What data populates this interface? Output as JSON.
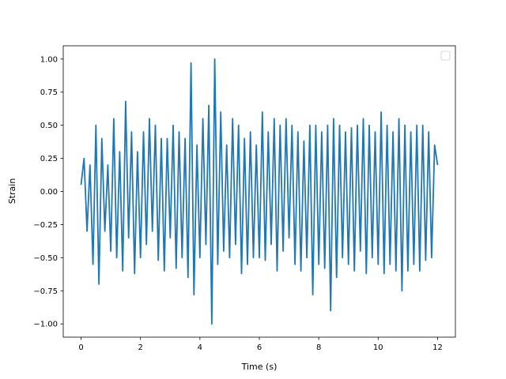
{
  "chart_data": {
    "type": "line",
    "xlabel": "Time (s)",
    "ylabel": "Strain",
    "xlim": [
      -0.6,
      12.6
    ],
    "ylim": [
      -1.1,
      1.1
    ],
    "xticks": [
      0,
      2,
      4,
      6,
      8,
      10,
      12
    ],
    "xtick_labels": [
      "0",
      "2",
      "4",
      "6",
      "8",
      "10",
      "12"
    ],
    "yticks": [
      -1.0,
      -0.75,
      -0.5,
      -0.25,
      0.0,
      0.25,
      0.5,
      0.75,
      1.0
    ],
    "ytick_labels": [
      "−1.00",
      "−0.75",
      "−0.50",
      "−0.25",
      "0.00",
      "0.25",
      "0.50",
      "0.75",
      "1.00"
    ],
    "grid": false,
    "legend": {
      "placement": "upper right",
      "entries": []
    },
    "series": [
      {
        "color": "#1f77b4",
        "x": [
          0.0,
          0.1,
          0.2,
          0.3,
          0.4,
          0.5,
          0.6,
          0.7,
          0.8,
          0.9,
          1.0,
          1.1,
          1.2,
          1.3,
          1.4,
          1.5,
          1.6,
          1.7,
          1.8,
          1.9,
          2.0,
          2.1,
          2.2,
          2.3,
          2.4,
          2.5,
          2.6,
          2.7,
          2.8,
          2.9,
          3.0,
          3.1,
          3.2,
          3.3,
          3.4,
          3.5,
          3.6,
          3.7,
          3.8,
          3.9,
          4.0,
          4.1,
          4.2,
          4.3,
          4.4,
          4.5,
          4.6,
          4.7,
          4.8,
          4.9,
          5.0,
          5.1,
          5.2,
          5.3,
          5.4,
          5.5,
          5.6,
          5.7,
          5.8,
          5.9,
          6.0,
          6.1,
          6.2,
          6.3,
          6.4,
          6.5,
          6.6,
          6.7,
          6.8,
          6.9,
          7.0,
          7.1,
          7.2,
          7.3,
          7.4,
          7.5,
          7.6,
          7.7,
          7.8,
          7.9,
          8.0,
          8.1,
          8.2,
          8.3,
          8.4,
          8.5,
          8.6,
          8.7,
          8.8,
          8.9,
          9.0,
          9.1,
          9.2,
          9.3,
          9.4,
          9.5,
          9.6,
          9.7,
          9.8,
          9.9,
          10.0,
          10.1,
          10.2,
          10.3,
          10.4,
          10.5,
          10.6,
          10.7,
          10.8,
          10.9,
          11.0,
          11.1,
          11.2,
          11.3,
          11.4,
          11.5,
          11.6,
          11.7,
          11.8,
          11.9,
          12.0
        ],
        "y": [
          0.05,
          0.25,
          -0.3,
          0.2,
          -0.55,
          0.5,
          -0.7,
          0.4,
          -0.3,
          0.2,
          -0.45,
          0.55,
          -0.5,
          0.3,
          -0.6,
          0.68,
          -0.35,
          0.45,
          -0.62,
          0.3,
          -0.5,
          0.45,
          -0.4,
          0.55,
          -0.3,
          0.5,
          -0.52,
          0.4,
          -0.6,
          0.4,
          -0.35,
          0.5,
          -0.58,
          0.45,
          -0.5,
          0.4,
          -0.65,
          0.97,
          -0.78,
          0.35,
          -0.5,
          0.55,
          -0.4,
          0.65,
          -1.0,
          1.0,
          -0.55,
          0.6,
          -0.45,
          0.35,
          -0.5,
          0.55,
          -0.4,
          0.5,
          -0.62,
          0.4,
          -0.55,
          0.45,
          -0.5,
          0.35,
          -0.5,
          0.6,
          -0.52,
          0.45,
          -0.4,
          0.55,
          -0.6,
          0.5,
          -0.45,
          0.55,
          -0.35,
          0.5,
          -0.55,
          0.45,
          -0.6,
          0.38,
          -0.5,
          0.5,
          -0.78,
          0.5,
          -0.55,
          0.45,
          -0.58,
          0.5,
          -0.9,
          0.55,
          -0.65,
          0.5,
          -0.5,
          0.45,
          -0.55,
          0.48,
          -0.6,
          0.5,
          -0.45,
          0.55,
          -0.62,
          0.5,
          -0.5,
          0.45,
          -0.55,
          0.6,
          -0.62,
          0.5,
          -0.55,
          0.45,
          -0.6,
          0.55,
          -0.75,
          0.5,
          -0.6,
          0.45,
          -0.55,
          0.5,
          -0.6,
          0.5,
          -0.52,
          0.45,
          -0.5,
          0.35,
          0.2
        ]
      }
    ]
  }
}
